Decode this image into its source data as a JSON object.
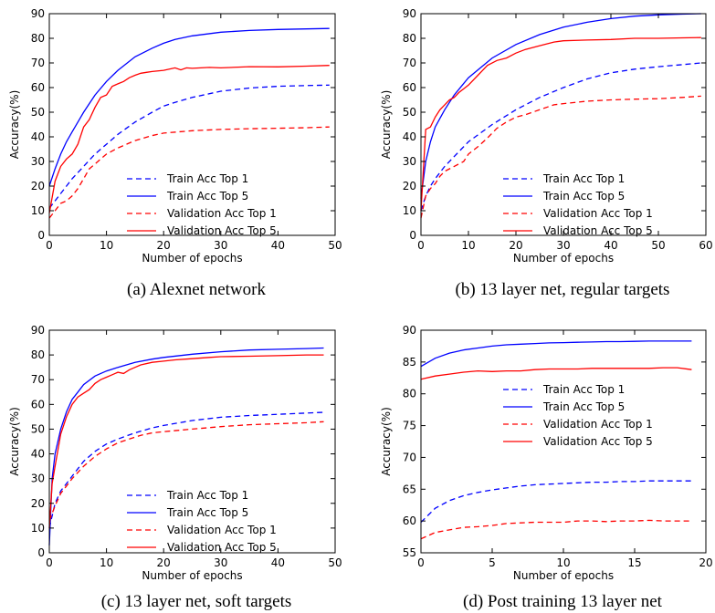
{
  "panels": [
    {
      "caption": "(a) Alexnet network",
      "chart_data": {
        "type": "line",
        "xlabel": "Number of epochs",
        "ylabel": "Accuracy(%)",
        "xlim": [
          0,
          50
        ],
        "ylim": [
          0,
          90
        ],
        "xticks": [
          0,
          10,
          20,
          30,
          40,
          50
        ],
        "yticks": [
          0,
          10,
          20,
          30,
          40,
          50,
          60,
          70,
          80,
          90
        ],
        "legend_position": "center-right",
        "series": [
          {
            "name": "Train Acc Top 1",
            "color": "#0000ff",
            "style": "dashed",
            "x": [
              0,
              1,
              2,
              3,
              4,
              5,
              6,
              7,
              8,
              10,
              12,
              15,
              18,
              20,
              22,
              25,
              30,
              35,
              40,
              45,
              49
            ],
            "y": [
              11,
              14,
              17,
              20,
              23,
              25.5,
              28,
              30.5,
              33,
              37,
              41,
              46,
              50,
              52.5,
              54,
              56,
              58.5,
              59.8,
              60.5,
              60.8,
              61
            ]
          },
          {
            "name": "Train Acc Top 5",
            "color": "#0000ff",
            "style": "solid",
            "x": [
              0,
              1,
              2,
              3,
              4,
              5,
              6,
              7,
              8,
              10,
              12,
              15,
              18,
              20,
              22,
              25,
              30,
              35,
              40,
              45,
              49
            ],
            "y": [
              20,
              27,
              33,
              38,
              42,
              46,
              50,
              53.5,
              57,
              62.5,
              67,
              72.5,
              76,
              78,
              79.5,
              81,
              82.5,
              83.2,
              83.6,
              83.8,
              84
            ]
          },
          {
            "name": "Validation Acc Top 1",
            "color": "#ff0000",
            "style": "dashed",
            "x": [
              0,
              1,
              2,
              3,
              4,
              5,
              6,
              7,
              8,
              9,
              10,
              12,
              15,
              18,
              20,
              25,
              30,
              35,
              40,
              45,
              49
            ],
            "y": [
              7,
              10,
              13,
              14,
              16,
              19,
              23,
              27,
              29,
              31,
              33,
              35.5,
              38.5,
              40.5,
              41.5,
              42.5,
              43,
              43.3,
              43.5,
              43.7,
              44
            ]
          },
          {
            "name": "Validation Acc Top 5",
            "color": "#ff0000",
            "style": "solid",
            "x": [
              0,
              1,
              2,
              3,
              4,
              5,
              6,
              7,
              8,
              9,
              10,
              11,
              12,
              13,
              14,
              15,
              16,
              17,
              18,
              20,
              22,
              23,
              24,
              25,
              28,
              30,
              35,
              40,
              45,
              49
            ],
            "y": [
              9,
              22,
              28,
              31,
              33,
              37,
              44,
              47,
              52,
              56,
              57,
              60.5,
              61.5,
              62.5,
              64,
              65,
              65.8,
              66.2,
              66.5,
              67,
              68,
              67.2,
              68,
              67.8,
              68.2,
              68,
              68.5,
              68.4,
              68.7,
              69
            ]
          }
        ]
      }
    },
    {
      "caption": "(b) 13 layer net, regular targets",
      "chart_data": {
        "type": "line",
        "xlabel": "Number of epochs",
        "ylabel": "Accuracy(%)",
        "xlim": [
          0,
          60
        ],
        "ylim": [
          0,
          90
        ],
        "xticks": [
          0,
          10,
          20,
          30,
          40,
          50,
          60
        ],
        "yticks": [
          0,
          10,
          20,
          30,
          40,
          50,
          60,
          70,
          80,
          90
        ],
        "legend_position": "center-right",
        "series": [
          {
            "name": "Train Acc Top 1",
            "color": "#0000ff",
            "style": "dashed",
            "x": [
              0,
              1,
              2,
              3,
              5,
              7,
              10,
              15,
              20,
              25,
              30,
              35,
              40,
              45,
              50,
              55,
              59
            ],
            "y": [
              10,
              16,
              20,
              23,
              28,
              32,
              38,
              45,
              51,
              56,
              60,
              63.5,
              66,
              67.5,
              68.5,
              69.3,
              70
            ]
          },
          {
            "name": "Train Acc Top 5",
            "color": "#0000ff",
            "style": "solid",
            "x": [
              0,
              1,
              2,
              3,
              5,
              7,
              10,
              15,
              20,
              25,
              30,
              35,
              40,
              45,
              50,
              55,
              59
            ],
            "y": [
              15,
              30,
              38,
              44,
              51,
              57,
              64,
              72,
              77.5,
              81.5,
              84.5,
              86.5,
              88,
              89,
              89.5,
              89.8,
              90
            ]
          },
          {
            "name": "Validation Acc Top 1",
            "color": "#ff0000",
            "style": "dashed",
            "x": [
              0,
              1,
              2,
              3,
              4,
              5,
              7,
              9,
              10,
              12,
              14,
              16,
              18,
              20,
              22,
              25,
              28,
              30,
              35,
              40,
              45,
              50,
              55,
              59
            ],
            "y": [
              7,
              16,
              19,
              21,
              24,
              26,
              28,
              30,
              33,
              36,
              39.5,
              43.5,
              46,
              48,
              49,
              51,
              53,
              53.5,
              54.5,
              55,
              55.3,
              55.5,
              56,
              56.5
            ]
          },
          {
            "name": "Validation Acc Top 5",
            "color": "#ff0000",
            "style": "solid",
            "x": [
              0,
              1,
              2,
              3,
              4,
              5,
              6,
              7,
              8,
              10,
              12,
              13,
              14,
              16,
              18,
              20,
              22,
              25,
              28,
              30,
              35,
              40,
              45,
              50,
              55,
              59
            ],
            "y": [
              10,
              43,
              44,
              48,
              51,
              53,
              55,
              56,
              58,
              61,
              65,
              67,
              69,
              71,
              72,
              74,
              75.5,
              77,
              78.5,
              79,
              79.3,
              79.5,
              80,
              80,
              80.2,
              80.3
            ]
          }
        ]
      }
    },
    {
      "caption": "(c) 13 layer net, soft targets",
      "chart_data": {
        "type": "line",
        "xlabel": "Number of epochs",
        "ylabel": "Accuracy(%)",
        "xlim": [
          0,
          50
        ],
        "ylim": [
          0,
          90
        ],
        "xticks": [
          0,
          10,
          20,
          30,
          40,
          50
        ],
        "yticks": [
          0,
          10,
          20,
          30,
          40,
          50,
          60,
          70,
          80,
          90
        ],
        "legend_position": "lower-right",
        "series": [
          {
            "name": "Train Acc Top 1",
            "color": "#0000ff",
            "style": "dashed",
            "x": [
              0,
              1,
              2,
              3,
              4,
              5,
              6,
              8,
              10,
              12,
              15,
              18,
              20,
              25,
              30,
              35,
              40,
              45,
              48
            ],
            "y": [
              10,
              20,
              25,
              28,
              31,
              34,
              37,
              41,
              44,
              46,
              48.5,
              50.5,
              51.5,
              53.5,
              54.8,
              55.5,
              56,
              56.5,
              56.8
            ]
          },
          {
            "name": "Train Acc Top 5",
            "color": "#0000ff",
            "style": "solid",
            "x": [
              0,
              0.5,
              1,
              2,
              3,
              4,
              5,
              6,
              8,
              10,
              12,
              15,
              18,
              20,
              25,
              30,
              35,
              40,
              45,
              48
            ],
            "y": [
              3,
              30,
              40,
              50,
              57,
              62,
              65,
              68,
              71.5,
              73.5,
              75,
              77,
              78.3,
              79,
              80.3,
              81.3,
              82,
              82.3,
              82.6,
              82.8
            ]
          },
          {
            "name": "Validation Acc Top 1",
            "color": "#ff0000",
            "style": "dashed",
            "x": [
              0,
              1,
              2,
              3,
              4,
              5,
              6,
              7,
              8,
              10,
              12,
              14,
              16,
              18,
              20,
              25,
              30,
              35,
              40,
              45,
              48
            ],
            "y": [
              13,
              19,
              24,
              27,
              30,
              32.5,
              35,
              37,
              39,
              42,
              44.5,
              46,
              47.5,
              48.5,
              49,
              50,
              51,
              51.8,
              52.2,
              52.6,
              53
            ]
          },
          {
            "name": "Validation Acc Top 5",
            "color": "#ff0000",
            "style": "solid",
            "x": [
              0,
              0.5,
              1,
              2,
              3,
              4,
              5,
              6,
              7,
              8,
              9,
              10,
              11,
              12,
              13,
              14,
              15,
              16,
              18,
              20,
              22,
              25,
              28,
              30,
              35,
              40,
              45,
              48
            ],
            "y": [
              10,
              28,
              35,
              48,
              55,
              60,
              63,
              64.5,
              66,
              68.5,
              70,
              71,
              72,
              73,
              72.5,
              74,
              75,
              76,
              77,
              77.5,
              78,
              78.5,
              79,
              79.3,
              79.5,
              79.7,
              80,
              80
            ]
          }
        ]
      }
    },
    {
      "caption": "(d) Post training 13 layer net",
      "chart_data": {
        "type": "line",
        "xlabel": "Number of epochs",
        "ylabel": "Accuracy(%)",
        "xlim": [
          0,
          20
        ],
        "ylim": [
          55,
          90
        ],
        "xticks": [
          0,
          5,
          10,
          15,
          20
        ],
        "yticks": [
          55,
          60,
          65,
          70,
          75,
          80,
          85,
          90
        ],
        "legend_position": "center-right",
        "series": [
          {
            "name": "Train Acc Top 1",
            "color": "#0000ff",
            "style": "dashed",
            "x": [
              0,
              1,
              2,
              3,
              4,
              5,
              6,
              7,
              8,
              9,
              10,
              11,
              12,
              13,
              14,
              15,
              16,
              17,
              18,
              19
            ],
            "y": [
              59.8,
              62,
              63.2,
              64,
              64.5,
              64.9,
              65.2,
              65.5,
              65.7,
              65.8,
              65.9,
              66,
              66.1,
              66.1,
              66.2,
              66.2,
              66.3,
              66.3,
              66.3,
              66.3
            ]
          },
          {
            "name": "Train Acc Top 5",
            "color": "#0000ff",
            "style": "solid",
            "x": [
              0,
              1,
              2,
              3,
              4,
              5,
              6,
              7,
              8,
              9,
              10,
              11,
              12,
              13,
              14,
              15,
              16,
              17,
              18,
              19
            ],
            "y": [
              84.3,
              85.6,
              86.4,
              86.9,
              87.2,
              87.5,
              87.7,
              87.8,
              87.9,
              88,
              88.05,
              88.1,
              88.15,
              88.2,
              88.2,
              88.25,
              88.3,
              88.3,
              88.3,
              88.3
            ]
          },
          {
            "name": "Validation Acc Top 1",
            "color": "#ff0000",
            "style": "dashed",
            "x": [
              0,
              1,
              2,
              3,
              4,
              5,
              6,
              7,
              8,
              9,
              10,
              11,
              12,
              13,
              14,
              15,
              16,
              17,
              18,
              19
            ],
            "y": [
              57.2,
              58.2,
              58.6,
              59,
              59.1,
              59.3,
              59.6,
              59.7,
              59.8,
              59.8,
              59.8,
              60,
              60,
              59.9,
              60,
              60,
              60.1,
              60,
              60,
              60
            ]
          },
          {
            "name": "Validation Acc Top 5",
            "color": "#ff0000",
            "style": "solid",
            "x": [
              0,
              1,
              2,
              3,
              4,
              5,
              6,
              7,
              8,
              9,
              10,
              11,
              12,
              13,
              14,
              15,
              16,
              17,
              18,
              19
            ],
            "y": [
              82.3,
              82.8,
              83.1,
              83.4,
              83.6,
              83.5,
              83.6,
              83.6,
              83.8,
              83.9,
              83.9,
              83.9,
              84,
              84,
              84,
              84,
              84,
              84.1,
              84.1,
              83.8
            ]
          }
        ]
      }
    }
  ]
}
